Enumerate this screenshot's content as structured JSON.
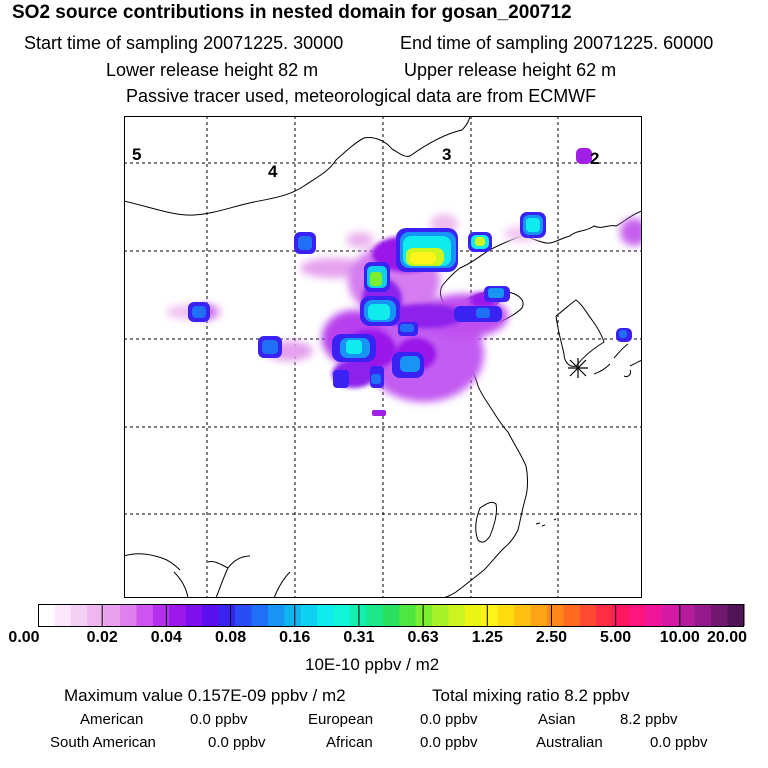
{
  "header": {
    "title": "SO2 source contributions in nested domain for gosan_200712",
    "start_time": "Start time of sampling 20071225. 30000",
    "end_time": "End time of sampling 20071225. 60000",
    "lower_height": "Lower release height   82 m",
    "upper_height": "Upper release height   62 m",
    "subtitle": "Passive tracer used, meteorological data are from ECMWF"
  },
  "map": {
    "region_labels": [
      "5",
      "4",
      "3",
      "2"
    ]
  },
  "legend": {
    "ticks": [
      "0.00",
      "0.02",
      "0.04",
      "0.08",
      "0.16",
      "0.31",
      "0.63",
      "1.25",
      "2.50",
      "5.00",
      "10.00",
      "20.00"
    ],
    "units": "10E-10 ppbv / m2",
    "colors": [
      "#ffffff",
      "#fbe6fb",
      "#f5d0f5",
      "#efb6ef",
      "#e9a0ef",
      "#df7ff0",
      "#cf55f2",
      "#b530ee",
      "#9a18e9",
      "#7d10ec",
      "#5a10ee",
      "#3a22f2",
      "#2a4cf5",
      "#2070f6",
      "#1794f4",
      "#10b4f0",
      "#0fd0ee",
      "#10ecee",
      "#10f6d8",
      "#14f0b0",
      "#1ce88a",
      "#2ae060",
      "#50e640",
      "#7cee30",
      "#a8f228",
      "#ccf41e",
      "#ecf414",
      "#fff41a",
      "#ffdc10",
      "#ffc010",
      "#ffa414",
      "#ff8818",
      "#ff6a22",
      "#ff4a30",
      "#ff2c44",
      "#ff1660",
      "#ff1480",
      "#f0169a",
      "#d41aa4",
      "#b41c9c",
      "#941a8c",
      "#701870",
      "#501454"
    ]
  },
  "summary": {
    "max_value": "Maximum value  0.157E-09 ppbv / m2",
    "total_mixing": "Total mixing ratio       8.2 ppbv",
    "american_label": "American",
    "american_value": "0.0 ppbv",
    "european_label": "European",
    "european_value": "0.0 ppbv",
    "asian_label": "Asian",
    "asian_value": "8.2 ppbv",
    "south_american_label": "South American",
    "south_american_value": "0.0 ppbv",
    "african_label": "African",
    "african_value": "0.0 ppbv",
    "australian_label": "Australian",
    "australian_value": "0.0 ppbv"
  }
}
